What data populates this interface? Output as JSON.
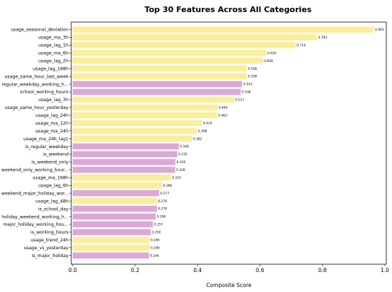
{
  "chart_data": {
    "type": "bar",
    "orientation": "horizontal",
    "title": "Top 30 Features Across All Categories",
    "xlabel": "Composite Score",
    "ylabel": "",
    "xlim": [
      0,
      1.0
    ],
    "xticks": [
      "0.0",
      "0.2",
      "0.4",
      "0.6",
      "0.8",
      "1.0"
    ],
    "grid": false,
    "colors": {
      "yellow": "#fbee9b",
      "purple": "#dda8d6"
    },
    "categories": [
      "usage_seasonal_deviation",
      "usage_ma_3h",
      "usage_lag_1h",
      "usage_ma_6h",
      "usage_lag_2h",
      "usage_lag_168h",
      "usage_same_hour_last_week",
      "regular_weekday_working_h...",
      "school_working_hours",
      "usage_lag_3h",
      "usage_same_hour_yesterday",
      "usage_lag_24h",
      "usage_ma_12h",
      "usage_ma_24h",
      "usage_ma_24h_lag1",
      "is_regular_weekday",
      "is_weekend",
      "is_weekend_only",
      "weekend_only_working_hour...",
      "usage_ma_168h",
      "usage_lag_6h",
      "weekend_major_holiday_wor...",
      "usage_lag_48h",
      "is_school_day",
      "holiday_weekend_working_h...",
      "major_holiday_working_hou...",
      "is_working_hours",
      "usage_trend_24h",
      "usage_vs_yesterday",
      "is_major_holiday"
    ],
    "values": [
      0.965,
      0.783,
      0.714,
      0.62,
      0.609,
      0.558,
      0.558,
      0.543,
      0.538,
      0.517,
      0.464,
      0.463,
      0.414,
      0.398,
      0.382,
      0.34,
      0.335,
      0.329,
      0.328,
      0.315,
      0.286,
      0.277,
      0.27,
      0.27,
      0.266,
      0.257,
      0.25,
      0.246,
      0.246,
      0.244
    ],
    "value_labels": [
      "0.965",
      "0.783",
      "0.714",
      "0.620",
      "0.609",
      "0.558",
      "0.558",
      "0.543",
      "0.538",
      "0.517",
      "0.464",
      "0.463",
      "0.414",
      "0.398",
      "0.382",
      "0.340",
      "0.335",
      "0.329",
      "0.328",
      "0.315",
      "0.286",
      "0.277",
      "0.270",
      "0.270",
      "0.266",
      "0.257",
      "0.250",
      "0.246",
      "0.246",
      "0.244"
    ],
    "bar_colors": [
      "yellow",
      "yellow",
      "yellow",
      "yellow",
      "yellow",
      "yellow",
      "yellow",
      "purple",
      "purple",
      "yellow",
      "yellow",
      "yellow",
      "yellow",
      "yellow",
      "yellow",
      "purple",
      "purple",
      "purple",
      "purple",
      "yellow",
      "yellow",
      "purple",
      "yellow",
      "purple",
      "purple",
      "purple",
      "purple",
      "yellow",
      "yellow",
      "purple"
    ]
  }
}
